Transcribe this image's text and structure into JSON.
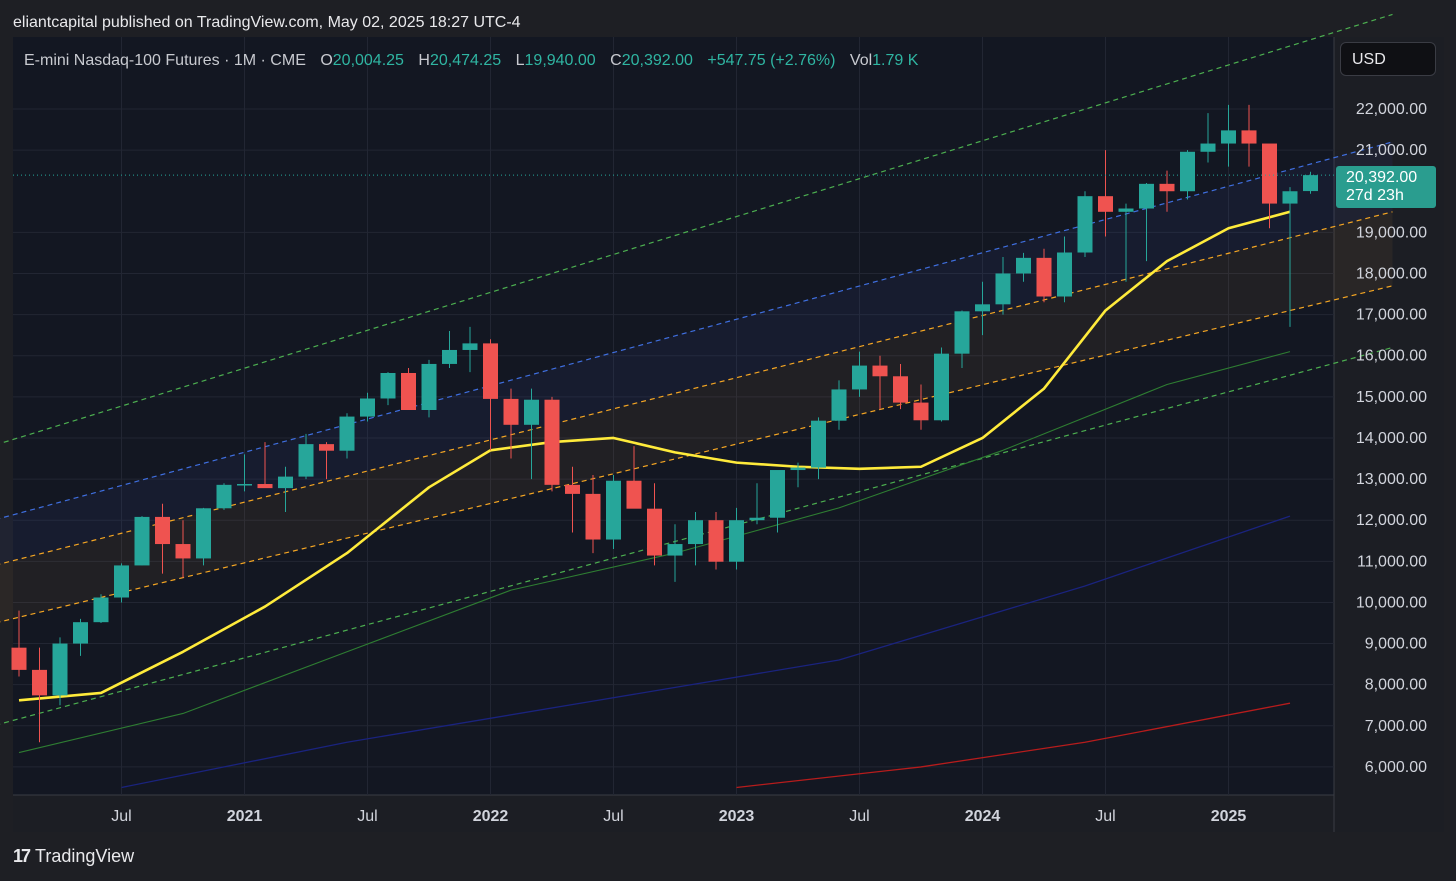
{
  "header": {
    "publish_text": "eliantcapital published on TradingView.com, May 02, 2025 18:27 UTC-4"
  },
  "legend": {
    "symbol": "E-mini Nasdaq-100 Futures · 1M · CME",
    "open_label": "O",
    "open": "20,004.25",
    "high_label": "H",
    "high": "20,474.25",
    "low_label": "L",
    "low": "19,940.00",
    "close_label": "C",
    "close": "20,392.00",
    "change": "+547.75 (+2.76%)",
    "vol_label": "Vol",
    "vol": "1.79 K"
  },
  "currency": "USD",
  "price_tag": {
    "price": "20,392.00",
    "countdown": "27d 23h"
  },
  "brand": {
    "logo": "17",
    "name": "TradingView"
  },
  "colors": {
    "up": "#26a69a",
    "down": "#ef5350",
    "ma": "#ffeb3b",
    "channel_outer": "#4caf50",
    "channel_mid": "#3f6fe0",
    "channel_inner": "#f5a623",
    "ma_green": "#2e7d32",
    "ma_blue": "#1a237e",
    "ma_red": "#b71c1c"
  },
  "chart_data": {
    "type": "candlestick",
    "title": "E-mini Nasdaq-100 Futures · 1M · CME",
    "y_ticks": [
      "22,000.00",
      "21,000.00",
      "19,000.00",
      "18,000.00",
      "17,000.00",
      "16,000.00",
      "15,000.00",
      "14,000.00",
      "13,000.00",
      "12,000.00",
      "11,000.00",
      "10,000.00",
      "9,000.00",
      "8,000.00",
      "7,000.00",
      "6,000.00"
    ],
    "y_tick_values": [
      22000,
      21000,
      19000,
      18000,
      17000,
      16000,
      15000,
      14000,
      13000,
      12000,
      11000,
      10000,
      9000,
      8000,
      7000,
      6000
    ],
    "x_ticks": [
      {
        "label": "Jul",
        "date": "2020-07",
        "bold": false
      },
      {
        "label": "2021",
        "date": "2021-01",
        "bold": true
      },
      {
        "label": "Jul",
        "date": "2021-07",
        "bold": false
      },
      {
        "label": "2022",
        "date": "2022-01",
        "bold": true
      },
      {
        "label": "Jul",
        "date": "2022-07",
        "bold": false
      },
      {
        "label": "2023",
        "date": "2023-01",
        "bold": true
      },
      {
        "label": "Jul",
        "date": "2023-07",
        "bold": false
      },
      {
        "label": "2024",
        "date": "2024-01",
        "bold": true
      },
      {
        "label": "Jul",
        "date": "2024-07",
        "bold": false
      },
      {
        "label": "2025",
        "date": "2025-01",
        "bold": true
      }
    ],
    "candles": [
      {
        "date": "2020-02",
        "o": 8900,
        "h": 9800,
        "l": 8200,
        "c": 8360
      },
      {
        "date": "2020-03",
        "o": 8360,
        "h": 8900,
        "l": 6600,
        "c": 7740
      },
      {
        "date": "2020-04",
        "o": 7740,
        "h": 9150,
        "l": 7500,
        "c": 9000
      },
      {
        "date": "2020-05",
        "o": 9000,
        "h": 9600,
        "l": 8700,
        "c": 9520
      },
      {
        "date": "2020-06",
        "o": 9520,
        "h": 10200,
        "l": 9500,
        "c": 10120
      },
      {
        "date": "2020-07",
        "o": 10120,
        "h": 10950,
        "l": 10000,
        "c": 10900
      },
      {
        "date": "2020-08",
        "o": 10900,
        "h": 12100,
        "l": 10900,
        "c": 12080
      },
      {
        "date": "2020-09",
        "o": 12080,
        "h": 12400,
        "l": 10700,
        "c": 11420
      },
      {
        "date": "2020-10",
        "o": 11420,
        "h": 12000,
        "l": 10600,
        "c": 11070
      },
      {
        "date": "2020-11",
        "o": 11070,
        "h": 12300,
        "l": 10900,
        "c": 12290
      },
      {
        "date": "2020-12",
        "o": 12290,
        "h": 12900,
        "l": 12250,
        "c": 12860
      },
      {
        "date": "2021-01",
        "o": 12860,
        "h": 13600,
        "l": 12700,
        "c": 12880
      },
      {
        "date": "2021-02",
        "o": 12880,
        "h": 13900,
        "l": 12800,
        "c": 12780
      },
      {
        "date": "2021-03",
        "o": 12780,
        "h": 13300,
        "l": 12200,
        "c": 13060
      },
      {
        "date": "2021-04",
        "o": 13060,
        "h": 14100,
        "l": 13000,
        "c": 13850
      },
      {
        "date": "2021-05",
        "o": 13850,
        "h": 13900,
        "l": 13000,
        "c": 13690
      },
      {
        "date": "2021-06",
        "o": 13690,
        "h": 14600,
        "l": 13500,
        "c": 14520
      },
      {
        "date": "2021-07",
        "o": 14520,
        "h": 15100,
        "l": 14400,
        "c": 14960
      },
      {
        "date": "2021-08",
        "o": 14960,
        "h": 15600,
        "l": 14800,
        "c": 15580
      },
      {
        "date": "2021-09",
        "o": 15580,
        "h": 15700,
        "l": 14700,
        "c": 14680
      },
      {
        "date": "2021-10",
        "o": 14680,
        "h": 15900,
        "l": 14500,
        "c": 15800
      },
      {
        "date": "2021-11",
        "o": 15800,
        "h": 16600,
        "l": 15700,
        "c": 16140
      },
      {
        "date": "2021-12",
        "o": 16140,
        "h": 16700,
        "l": 15600,
        "c": 16300
      },
      {
        "date": "2022-01",
        "o": 16300,
        "h": 16400,
        "l": 13700,
        "c": 14950
      },
      {
        "date": "2022-02",
        "o": 14950,
        "h": 15200,
        "l": 13500,
        "c": 14320
      },
      {
        "date": "2022-03",
        "o": 14320,
        "h": 15200,
        "l": 13000,
        "c": 14930
      },
      {
        "date": "2022-04",
        "o": 14930,
        "h": 15000,
        "l": 12700,
        "c": 12860
      },
      {
        "date": "2022-05",
        "o": 12860,
        "h": 13300,
        "l": 11700,
        "c": 12640
      },
      {
        "date": "2022-06",
        "o": 12640,
        "h": 13100,
        "l": 11200,
        "c": 11530
      },
      {
        "date": "2022-07",
        "o": 11530,
        "h": 13100,
        "l": 11300,
        "c": 12960
      },
      {
        "date": "2022-08",
        "o": 12960,
        "h": 13800,
        "l": 12300,
        "c": 12280
      },
      {
        "date": "2022-09",
        "o": 12280,
        "h": 12900,
        "l": 10900,
        "c": 11140
      },
      {
        "date": "2022-10",
        "o": 11140,
        "h": 11900,
        "l": 10500,
        "c": 11420
      },
      {
        "date": "2022-11",
        "o": 11420,
        "h": 12200,
        "l": 10900,
        "c": 12000
      },
      {
        "date": "2022-12",
        "o": 12000,
        "h": 12200,
        "l": 10800,
        "c": 10990
      },
      {
        "date": "2023-01",
        "o": 10990,
        "h": 12300,
        "l": 10800,
        "c": 12000
      },
      {
        "date": "2023-02",
        "o": 12000,
        "h": 12900,
        "l": 11900,
        "c": 12060
      },
      {
        "date": "2023-03",
        "o": 12060,
        "h": 13200,
        "l": 11700,
        "c": 13220
      },
      {
        "date": "2023-04",
        "o": 13220,
        "h": 13400,
        "l": 12800,
        "c": 13280
      },
      {
        "date": "2023-05",
        "o": 13280,
        "h": 14500,
        "l": 13000,
        "c": 14420
      },
      {
        "date": "2023-06",
        "o": 14420,
        "h": 15400,
        "l": 14200,
        "c": 15180
      },
      {
        "date": "2023-07",
        "o": 15180,
        "h": 16100,
        "l": 15000,
        "c": 15760
      },
      {
        "date": "2023-08",
        "o": 15760,
        "h": 16000,
        "l": 14700,
        "c": 15500
      },
      {
        "date": "2023-09",
        "o": 15500,
        "h": 15800,
        "l": 14700,
        "c": 14860
      },
      {
        "date": "2023-10",
        "o": 14860,
        "h": 15300,
        "l": 14200,
        "c": 14430
      },
      {
        "date": "2023-11",
        "o": 14430,
        "h": 16200,
        "l": 14400,
        "c": 16050
      },
      {
        "date": "2023-12",
        "o": 16050,
        "h": 17100,
        "l": 15700,
        "c": 17080
      },
      {
        "date": "2024-01",
        "o": 17080,
        "h": 17800,
        "l": 16500,
        "c": 17250
      },
      {
        "date": "2024-02",
        "o": 17250,
        "h": 18400,
        "l": 17000,
        "c": 18000
      },
      {
        "date": "2024-03",
        "o": 18000,
        "h": 18500,
        "l": 17800,
        "c": 18380
      },
      {
        "date": "2024-04",
        "o": 18380,
        "h": 18600,
        "l": 17300,
        "c": 17440
      },
      {
        "date": "2024-05",
        "o": 17440,
        "h": 18900,
        "l": 17300,
        "c": 18510
      },
      {
        "date": "2024-06",
        "o": 18510,
        "h": 20000,
        "l": 18400,
        "c": 19880
      },
      {
        "date": "2024-07",
        "o": 19880,
        "h": 21000,
        "l": 18900,
        "c": 19500
      },
      {
        "date": "2024-08",
        "o": 19500,
        "h": 19700,
        "l": 17800,
        "c": 19580
      },
      {
        "date": "2024-09",
        "o": 19580,
        "h": 20200,
        "l": 18300,
        "c": 20180
      },
      {
        "date": "2024-10",
        "o": 20180,
        "h": 20500,
        "l": 19500,
        "c": 20000
      },
      {
        "date": "2024-11",
        "o": 20000,
        "h": 21000,
        "l": 19800,
        "c": 20960
      },
      {
        "date": "2024-12",
        "o": 20960,
        "h": 21900,
        "l": 20700,
        "c": 21160
      },
      {
        "date": "2025-01",
        "o": 21160,
        "h": 22100,
        "l": 20600,
        "c": 21480
      },
      {
        "date": "2025-02",
        "o": 21480,
        "h": 22100,
        "l": 20600,
        "c": 21160
      },
      {
        "date": "2025-03",
        "o": 21160,
        "h": 21100,
        "l": 19100,
        "c": 19700
      },
      {
        "date": "2025-04",
        "o": 19700,
        "h": 20100,
        "l": 16700,
        "c": 20000
      },
      {
        "date": "2025-05",
        "o": 20004.25,
        "h": 20474.25,
        "l": 19940,
        "c": 20392
      }
    ],
    "series": [
      {
        "style": "yellow",
        "x": [
          "2020-02",
          "2020-06",
          "2020-10",
          "2021-02",
          "2021-06",
          "2021-10",
          "2022-01",
          "2022-04",
          "2022-07",
          "2022-10",
          "2023-01",
          "2023-04",
          "2023-07",
          "2023-10",
          "2024-01",
          "2024-04",
          "2024-07",
          "2024-10",
          "2025-01",
          "2025-04"
        ],
        "values": [
          7620,
          7800,
          8800,
          9900,
          11200,
          12800,
          13700,
          13900,
          14000,
          13650,
          13400,
          13300,
          13250,
          13300,
          14000,
          15200,
          17100,
          18300,
          19100,
          19500
        ]
      },
      {
        "style": "green-solid",
        "x": [
          "2020-02",
          "2020-10",
          "2021-06",
          "2022-02",
          "2022-10",
          "2023-06",
          "2024-02",
          "2024-10",
          "2025-04"
        ],
        "values": [
          6350,
          7300,
          8800,
          10300,
          11200,
          12300,
          13700,
          15300,
          16100
        ]
      },
      {
        "style": "blue-solid",
        "x": [
          "2020-07",
          "2021-06",
          "2022-06",
          "2023-06",
          "2024-06",
          "2025-04"
        ],
        "values": [
          5500,
          6600,
          7600,
          8600,
          10400,
          12100
        ]
      },
      {
        "style": "red-solid",
        "x": [
          "2023-01",
          "2023-10",
          "2024-06",
          "2025-04"
        ],
        "values": [
          5500,
          6000,
          6600,
          7550
        ]
      }
    ],
    "channel": {
      "start_date": "2019-12",
      "end_date": "2025-09",
      "lines": [
        {
          "style": "green-dash",
          "start": 13700,
          "end": 24300
        },
        {
          "style": "blue-dash",
          "start": 11900,
          "end": 21200
        },
        {
          "style": "orange-dash",
          "start": 10800,
          "end": 19500
        },
        {
          "style": "orange-dash",
          "start": 9400,
          "end": 17700
        },
        {
          "style": "green-dash",
          "start": 6900,
          "end": 16200
        }
      ]
    },
    "last_price": 20392,
    "ylim": [
      5500,
      23400
    ],
    "grid": true
  }
}
